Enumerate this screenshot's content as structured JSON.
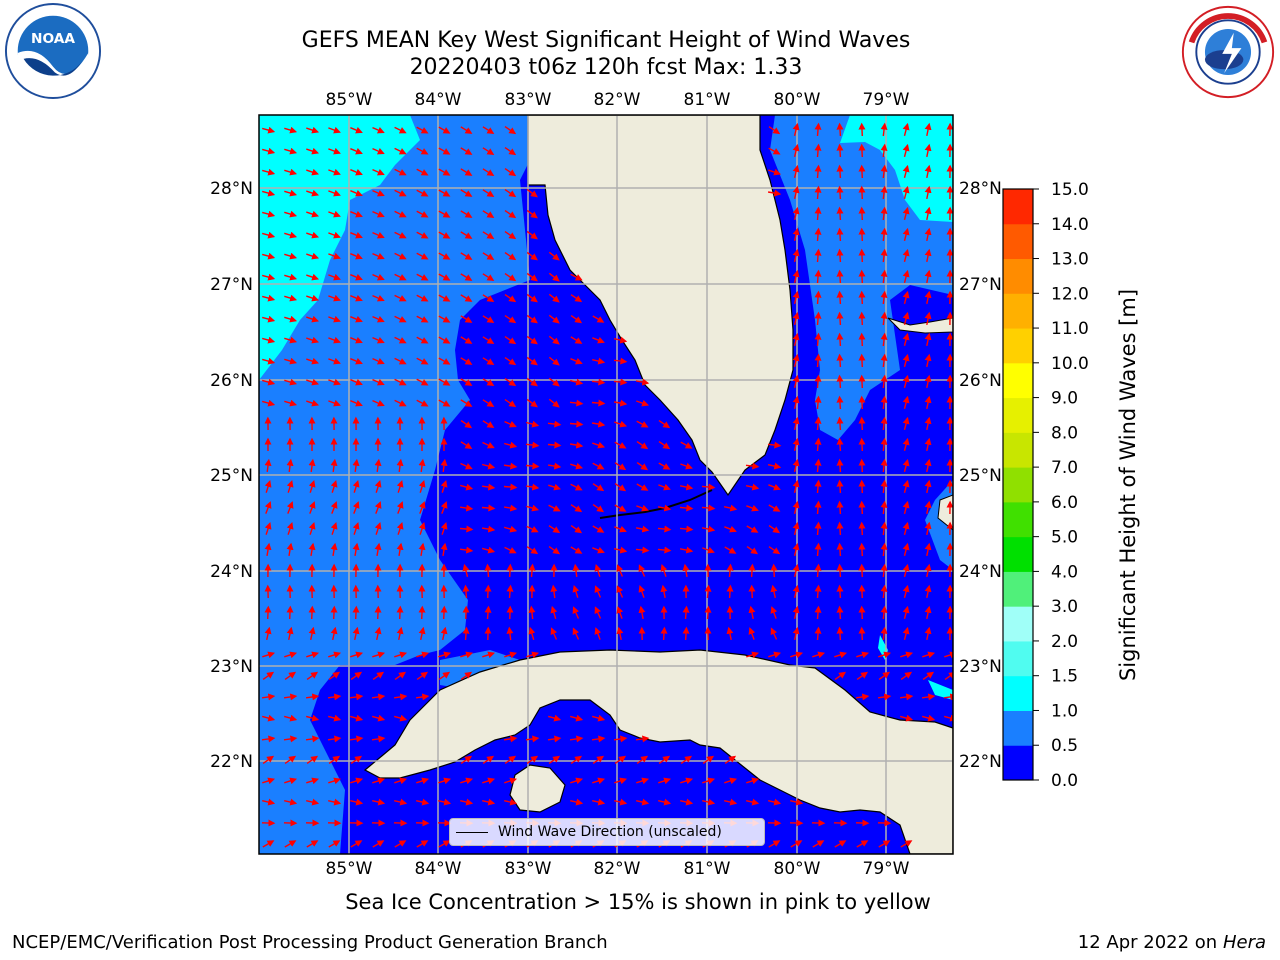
{
  "title": {
    "line1": "GEFS MEAN Key West Significant Height of Wind Waves",
    "line2": "20220403 t06z 120h fcst   Max: 1.33"
  },
  "logos": {
    "left": "noaa-logo",
    "right": "national-weather-service-logo",
    "left_text": "NOAA",
    "left_ring_text": "NATIONAL OCEANIC AND ATMOSPHERIC ADMINISTRATION · U.S. DEPARTMENT OF COMMERCE",
    "right_ring_text": "NATIONAL WEATHER SERVICE"
  },
  "map": {
    "lon_labels": [
      "85°W",
      "84°W",
      "83°W",
      "82°W",
      "81°W",
      "80°W",
      "79°W"
    ],
    "lat_labels": [
      "28°N",
      "27°N",
      "26°N",
      "25°N",
      "24°N",
      "23°N",
      "22°N"
    ],
    "lon_range": [
      -86.0,
      -78.3
    ],
    "lat_range": [
      21.0,
      28.75
    ],
    "land_color": "#eeecdc",
    "grid": true,
    "arrow_color": "#ff0000",
    "contour_colors": {
      "0.0-0.5": "#0000ff",
      "0.5-1.0": "#1a7fff",
      "1.0-1.5": "#00ffff"
    }
  },
  "colorbar": {
    "label": "Significant Height of Wind Waves [m]",
    "ticks": [
      "0.0",
      "0.5",
      "1.0",
      "1.5",
      "2.0",
      "3.0",
      "4.0",
      "5.0",
      "6.0",
      "7.0",
      "8.0",
      "9.0",
      "10.0",
      "11.0",
      "12.0",
      "13.0",
      "14.0",
      "15.0"
    ],
    "colors": [
      "#0000ff",
      "#1a7fff",
      "#00ffff",
      "#50fcf0",
      "#a0fff8",
      "#50f07a",
      "#00e000",
      "#40e000",
      "#90e000",
      "#c8e600",
      "#e6f000",
      "#ffff00",
      "#ffd000",
      "#ffb000",
      "#ff8c00",
      "#ff5a00",
      "#ff2800",
      "#ff0000"
    ]
  },
  "legend": {
    "label": "Wind Wave Direction (unscaled)"
  },
  "ice_note": "Sea Ice Concentration > 15% is shown in pink to yellow",
  "footer": {
    "left": "NCEP/EMC/Verification Post Processing Product Generation Branch",
    "right_date": "12 Apr 2022 on ",
    "right_host": "Hera"
  }
}
